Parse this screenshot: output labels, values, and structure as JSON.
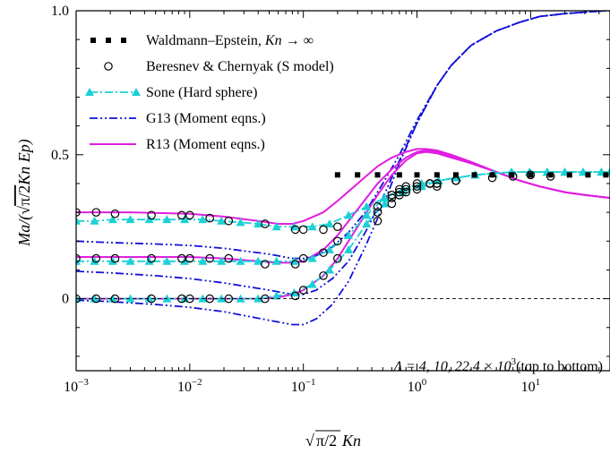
{
  "chart_data": {
    "type": "line",
    "xlabel_parts": {
      "sqrt_arg": "π/2",
      "var": "Kn"
    },
    "ylabel_parts": {
      "pre": "Ma/(",
      "sqrt_arg": "π/2",
      "post": "Kn Ep)"
    },
    "x_scale": "log",
    "xlim": [
      0.001,
      50
    ],
    "ylim": [
      -0.25,
      1.0
    ],
    "x_ticks": [
      {
        "value": 0.001,
        "base": "10",
        "exp": "−3"
      },
      {
        "value": 0.01,
        "base": "10",
        "exp": "−2"
      },
      {
        "value": 0.1,
        "base": "10",
        "exp": "−1"
      },
      {
        "value": 1,
        "base": "10",
        "exp": "0"
      },
      {
        "value": 10,
        "base": "10",
        "exp": "1"
      }
    ],
    "y_ticks": [
      {
        "value": 0,
        "label": "0"
      },
      {
        "value": 0.5,
        "label": "0.5"
      },
      {
        "value": 1.0,
        "label": "1.0"
      }
    ],
    "reference_line": {
      "y": 0,
      "style": "dashed"
    },
    "annotation": {
      "prefix": "Λ = 4, 10, 22.4 × 10",
      "sup": "3",
      "suffix": "(top to bottom)"
    },
    "legend": {
      "position": "top-left",
      "entries": [
        {
          "key": "we",
          "label": "Waldmann–Epstein, ",
          "italic": "Kn",
          "after": " → ∞"
        },
        {
          "key": "bc",
          "label": "Beresnev & Chernyak (S model)"
        },
        {
          "key": "sone",
          "label": "Sone (Hard sphere)"
        },
        {
          "key": "g13",
          "label": "G13 (Moment eqns.)"
        },
        {
          "key": "r13",
          "label": "R13 (Moment eqns.)"
        }
      ]
    },
    "colors": {
      "we": "#000000",
      "bc": "#000000",
      "sone": "#1ad1d6",
      "g13": "#1010d8",
      "r13": "#e01ee0"
    },
    "series": [
      {
        "name": "Waldmann–Epstein, Kn → ∞",
        "key": "we",
        "style": "square-markers",
        "x": [
          0.2,
          0.3,
          0.45,
          0.7,
          1,
          1.5,
          2.2,
          3.2,
          4.6,
          6.8,
          10,
          15,
          22,
          32,
          46
        ],
        "y": [
          0.43,
          0.43,
          0.43,
          0.43,
          0.43,
          0.43,
          0.43,
          0.43,
          0.43,
          0.43,
          0.43,
          0.43,
          0.43,
          0.43,
          0.43
        ]
      },
      {
        "name": "Beresnev & Chernyak (S model)",
        "key": "bc",
        "style": "open-circles",
        "group": [
          {
            "x": [
              0.001,
              0.0015,
              0.0022,
              0.0046,
              0.0085,
              0.01,
              0.015,
              0.022,
              0.046,
              0.085,
              0.1,
              0.15,
              0.2,
              0.45,
              0.6,
              0.7,
              0.8,
              1,
              1.3,
              1.5,
              2.2,
              4.6,
              7,
              10,
              15
            ],
            "y": [
              0.0,
              0.0,
              0.0,
              0.0,
              0.0,
              0.0,
              0.0,
              0.0,
              0.0,
              0.01,
              0.03,
              0.08,
              0.14,
              0.27,
              0.33,
              0.36,
              0.37,
              0.38,
              0.4,
              0.39,
              0.41,
              0.42,
              0.425,
              0.43,
              0.425
            ]
          },
          {
            "x": [
              0.001,
              0.0015,
              0.0022,
              0.0046,
              0.0085,
              0.01,
              0.015,
              0.022,
              0.046,
              0.085,
              0.1,
              0.15,
              0.2,
              0.45,
              0.6,
              0.7,
              0.8,
              1,
              1.3,
              1.5,
              2.2
            ],
            "y": [
              0.14,
              0.14,
              0.14,
              0.14,
              0.14,
              0.14,
              0.14,
              0.14,
              0.12,
              0.12,
              0.14,
              0.16,
              0.2,
              0.3,
              0.35,
              0.37,
              0.38,
              0.39,
              0.4,
              0.4,
              0.41
            ]
          },
          {
            "x": [
              0.001,
              0.0015,
              0.0022,
              0.0046,
              0.0085,
              0.01,
              0.015,
              0.022,
              0.046,
              0.085,
              0.1,
              0.15,
              0.2,
              0.45,
              0.6,
              0.7,
              0.8,
              1,
              1.3,
              1.5,
              2.2
            ],
            "y": [
              0.3,
              0.3,
              0.295,
              0.29,
              0.29,
              0.29,
              0.28,
              0.27,
              0.26,
              0.24,
              0.24,
              0.24,
              0.25,
              0.32,
              0.36,
              0.38,
              0.39,
              0.4,
              0.4,
              0.4,
              0.41
            ]
          }
        ]
      },
      {
        "name": "Sone (Hard sphere)",
        "key": "sone",
        "style": "dash-dot-triangle",
        "group": [
          {
            "x": [
              0.001,
              0.00145,
              0.0021,
              0.003,
              0.0044,
              0.0063,
              0.009,
              0.013,
              0.019,
              0.028,
              0.04,
              0.058,
              0.083,
              0.12,
              0.17,
              0.25,
              0.36,
              0.52,
              0.75,
              1.1,
              1.55,
              2.25,
              3.25,
              4.7,
              6.8,
              9.8,
              14,
              20,
              29,
              42,
              50
            ],
            "y": [
              0.0,
              0.0,
              0.0,
              0.0,
              0.0,
              0.0,
              0.0,
              0.0,
              0.0,
              0.0,
              0.0,
              0.01,
              0.02,
              0.05,
              0.1,
              0.17,
              0.26,
              0.33,
              0.37,
              0.39,
              0.41,
              0.42,
              0.43,
              0.435,
              0.44,
              0.44,
              0.44,
              0.44,
              0.44,
              0.44,
              0.44
            ]
          },
          {
            "x": [
              0.001,
              0.00145,
              0.0021,
              0.003,
              0.0044,
              0.0063,
              0.009,
              0.013,
              0.019,
              0.028,
              0.04,
              0.058,
              0.083,
              0.12,
              0.17,
              0.25,
              0.36,
              0.52,
              0.75,
              1.1,
              1.55,
              2.25,
              3.25,
              4.7,
              6.8,
              9.8,
              14,
              20,
              29,
              42,
              50
            ],
            "y": [
              0.13,
              0.13,
              0.13,
              0.13,
              0.13,
              0.13,
              0.13,
              0.13,
              0.13,
              0.13,
              0.13,
              0.13,
              0.13,
              0.14,
              0.17,
              0.22,
              0.29,
              0.35,
              0.38,
              0.4,
              0.41,
              0.42,
              0.43,
              0.435,
              0.44,
              0.44,
              0.44,
              0.44,
              0.44,
              0.44,
              0.44
            ]
          },
          {
            "x": [
              0.001,
              0.00145,
              0.0021,
              0.003,
              0.0044,
              0.0063,
              0.009,
              0.013,
              0.019,
              0.028,
              0.04,
              0.058,
              0.083,
              0.12,
              0.17,
              0.25,
              0.36,
              0.52,
              0.75,
              1.1,
              1.55,
              2.25,
              3.25,
              4.7,
              6.8,
              9.8,
              14,
              20,
              29,
              42,
              50
            ],
            "y": [
              0.27,
              0.27,
              0.275,
              0.275,
              0.275,
              0.275,
              0.275,
              0.275,
              0.27,
              0.265,
              0.26,
              0.25,
              0.25,
              0.25,
              0.26,
              0.29,
              0.32,
              0.35,
              0.38,
              0.4,
              0.41,
              0.42,
              0.43,
              0.435,
              0.44,
              0.44,
              0.44,
              0.44,
              0.44,
              0.44,
              0.44
            ]
          }
        ]
      },
      {
        "name": "G13 (Moment eqns.)",
        "key": "g13",
        "style": "dash-dot-dot",
        "group": [
          {
            "x": [
              0.001,
              0.002,
              0.005,
              0.01,
              0.02,
              0.05,
              0.08,
              0.1,
              0.13,
              0.18,
              0.25,
              0.35,
              0.5,
              0.7,
              1,
              1.5,
              2,
              3,
              5,
              8,
              12,
              20,
              30,
              45,
              50
            ],
            "y": [
              -0.005,
              -0.01,
              -0.02,
              -0.03,
              -0.045,
              -0.075,
              -0.09,
              -0.09,
              -0.07,
              -0.02,
              0.06,
              0.18,
              0.32,
              0.47,
              0.61,
              0.74,
              0.81,
              0.88,
              0.93,
              0.96,
              0.98,
              0.99,
              0.995,
              1.0,
              1.0
            ]
          },
          {
            "x": [
              0.001,
              0.002,
              0.005,
              0.01,
              0.02,
              0.05,
              0.08,
              0.1,
              0.13,
              0.18,
              0.25,
              0.35,
              0.5,
              0.7,
              1,
              1.5,
              2,
              3,
              5,
              8,
              12,
              20,
              30,
              45,
              50
            ],
            "y": [
              0.095,
              0.09,
              0.08,
              0.07,
              0.055,
              0.03,
              0.015,
              0.015,
              0.03,
              0.07,
              0.13,
              0.23,
              0.35,
              0.48,
              0.61,
              0.74,
              0.81,
              0.88,
              0.93,
              0.96,
              0.98,
              0.99,
              0.995,
              1.0,
              1.0
            ]
          },
          {
            "x": [
              0.001,
              0.002,
              0.005,
              0.01,
              0.02,
              0.05,
              0.08,
              0.1,
              0.13,
              0.18,
              0.25,
              0.35,
              0.5,
              0.7,
              1,
              1.5,
              2,
              3,
              5,
              8,
              12,
              20,
              30,
              45,
              50
            ],
            "y": [
              0.2,
              0.195,
              0.19,
              0.185,
              0.175,
              0.155,
              0.14,
              0.14,
              0.15,
              0.18,
              0.23,
              0.3,
              0.4,
              0.5,
              0.62,
              0.74,
              0.81,
              0.88,
              0.93,
              0.96,
              0.98,
              0.99,
              0.995,
              1.0,
              1.0
            ]
          }
        ]
      },
      {
        "name": "R13 (Moment eqns.)",
        "key": "r13",
        "style": "solid",
        "group": [
          {
            "x": [
              0.001,
              0.003,
              0.01,
              0.02,
              0.04,
              0.06,
              0.08,
              0.1,
              0.15,
              0.2,
              0.3,
              0.45,
              0.6,
              0.8,
              1,
              1.2,
              1.5,
              2,
              3,
              5,
              8,
              12,
              20,
              30,
              50
            ],
            "y": [
              0.0,
              0.0,
              0.0,
              0.0,
              0.0,
              0.005,
              0.015,
              0.03,
              0.08,
              0.14,
              0.25,
              0.36,
              0.43,
              0.48,
              0.505,
              0.51,
              0.505,
              0.49,
              0.47,
              0.44,
              0.41,
              0.39,
              0.37,
              0.36,
              0.35
            ]
          },
          {
            "x": [
              0.001,
              0.003,
              0.01,
              0.02,
              0.04,
              0.06,
              0.08,
              0.1,
              0.15,
              0.2,
              0.3,
              0.45,
              0.6,
              0.8,
              1,
              1.2,
              1.5,
              2,
              3,
              5,
              8,
              12,
              20,
              30,
              50
            ],
            "y": [
              0.145,
              0.145,
              0.145,
              0.14,
              0.13,
              0.125,
              0.125,
              0.13,
              0.17,
              0.22,
              0.31,
              0.4,
              0.45,
              0.49,
              0.51,
              0.515,
              0.51,
              0.495,
              0.47,
              0.44,
              0.41,
              0.39,
              0.37,
              0.36,
              0.35
            ]
          },
          {
            "x": [
              0.001,
              0.003,
              0.01,
              0.02,
              0.04,
              0.06,
              0.08,
              0.1,
              0.15,
              0.2,
              0.3,
              0.45,
              0.6,
              0.8,
              1,
              1.2,
              1.5,
              2,
              3,
              5,
              8,
              12,
              20,
              30,
              50
            ],
            "y": [
              0.3,
              0.3,
              0.295,
              0.285,
              0.27,
              0.26,
              0.26,
              0.27,
              0.3,
              0.34,
              0.4,
              0.46,
              0.49,
              0.51,
              0.52,
              0.52,
              0.515,
              0.5,
              0.475,
              0.44,
              0.41,
              0.39,
              0.37,
              0.36,
              0.35
            ]
          }
        ]
      }
    ]
  }
}
